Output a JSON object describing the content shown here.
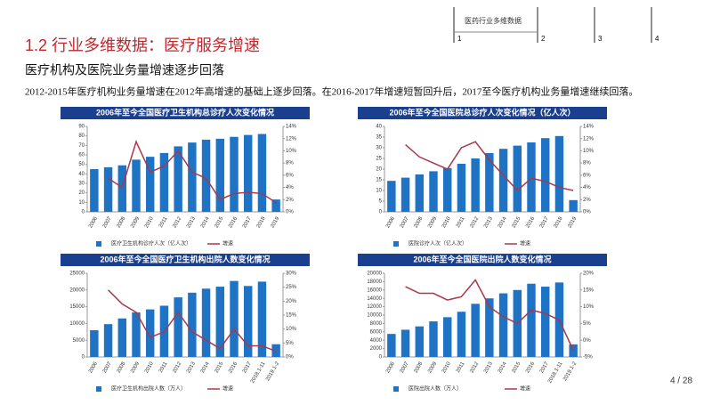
{
  "header": {
    "section": "医药行业多维数据",
    "tabs": [
      "1",
      "2",
      "3",
      "4"
    ]
  },
  "title": "1.2 行业多维数据：医疗服务增速",
  "subtitle": "医疗机构及医院业务量增速逐步回落",
  "paragraph": "2012-2015年医疗机构业务量增速在2012年高增速的基础上逐步回落。在2016-2017年增速短暂回升后，2017至今医疗机构业务量增速继续回落。",
  "page": "4 / 28",
  "chart_data": [
    {
      "type": "bar_line",
      "title": "2006年至今全国医疗卫生机构总诊疗人次变化情况",
      "categories": [
        "2006",
        "2007",
        "2008",
        "2009",
        "2010",
        "2011",
        "2012",
        "2013",
        "2014",
        "2015",
        "2016",
        "2017",
        "2018",
        "2019"
      ],
      "series": [
        {
          "name": "医疗卫生机构诊疗人次（亿人次）",
          "color": "#1f73c4",
          "values": [
            45,
            47,
            49,
            55,
            58,
            62,
            69,
            73,
            76,
            77,
            79,
            81,
            82,
            13
          ]
        },
        {
          "name": "增速",
          "color": "#a8384a",
          "axis": "y2",
          "values": [
            null,
            5.5,
            4,
            11.5,
            6.5,
            7.5,
            10,
            6.5,
            5.5,
            2,
            3,
            3.2,
            3,
            1.5
          ]
        }
      ],
      "ylim": [
        0,
        90
      ],
      "yticks": [
        0,
        10,
        20,
        30,
        40,
        50,
        60,
        70,
        80,
        90
      ],
      "y2lim": [
        0,
        14
      ],
      "y2ticks": [
        {
          "value": 0,
          "label": "0%"
        },
        {
          "value": 2,
          "label": "2%"
        },
        {
          "value": 4,
          "label": "4%"
        },
        {
          "value": 6,
          "label": "6%"
        },
        {
          "value": 8,
          "label": "8%"
        },
        {
          "value": 10,
          "label": "10%"
        },
        {
          "value": 12,
          "label": "12%"
        },
        {
          "value": 14,
          "label": "14%"
        }
      ]
    },
    {
      "type": "bar_line",
      "title": "2006年至今全国医院总诊疗人次变化情况（亿人次）",
      "categories": [
        "2006",
        "2007",
        "2008",
        "2009",
        "2010",
        "2011",
        "2012",
        "2013",
        "2014",
        "2015",
        "2016",
        "2017",
        "2018",
        "2019"
      ],
      "series": [
        {
          "name": "医院诊疗人次（亿人次）",
          "color": "#1f73c4",
          "values": [
            14.5,
            16,
            17.5,
            19,
            20.5,
            22.5,
            25,
            27.5,
            29.5,
            31,
            32.5,
            34.5,
            35.5,
            5.5
          ]
        },
        {
          "name": "增速",
          "color": "#a8384a",
          "axis": "y2",
          "values": [
            null,
            11,
            9,
            8,
            7,
            10.5,
            11.5,
            8.5,
            6,
            3.5,
            5.5,
            5,
            4,
            3.5
          ]
        }
      ],
      "ylim": [
        0,
        40
      ],
      "yticks": [
        0,
        5,
        10,
        15,
        20,
        25,
        30,
        35,
        40
      ],
      "y2lim": [
        0,
        14
      ],
      "y2ticks": [
        {
          "value": 0,
          "label": "0%"
        },
        {
          "value": 2,
          "label": "2%"
        },
        {
          "value": 4,
          "label": "4%"
        },
        {
          "value": 6,
          "label": "6%"
        },
        {
          "value": 8,
          "label": "8%"
        },
        {
          "value": 10,
          "label": "10%"
        },
        {
          "value": 12,
          "label": "12%"
        },
        {
          "value": 14,
          "label": "14%"
        }
      ]
    },
    {
      "type": "bar_line",
      "title": "2006年至今全国医疗卫生机构出院人数变化情况",
      "categories": [
        "2006",
        "2007",
        "2008",
        "2009",
        "2010",
        "2011",
        "2012",
        "2013",
        "2014",
        "2015",
        "2016",
        "2017",
        "2018.1-11",
        "2019.1-2"
      ],
      "series": [
        {
          "name": "医疗卫生机构出院人数（万人）",
          "color": "#1f73c4",
          "values": [
            8000,
            9800,
            11500,
            13300,
            14200,
            15300,
            17800,
            19200,
            20400,
            21000,
            22700,
            21200,
            22500,
            3800
          ]
        },
        {
          "name": "增速",
          "color": "#a8384a",
          "axis": "y2",
          "values": [
            null,
            24,
            19,
            16,
            7,
            9,
            16,
            9,
            6,
            3,
            10,
            4,
            4,
            2
          ]
        }
      ],
      "ylim": [
        0,
        25000
      ],
      "yticks": [
        0,
        5000,
        10000,
        15000,
        20000,
        25000
      ],
      "y2lim": [
        0,
        30
      ],
      "y2ticks": [
        {
          "value": 0,
          "label": "0%"
        },
        {
          "value": 5,
          "label": "5%"
        },
        {
          "value": 10,
          "label": "10%"
        },
        {
          "value": 15,
          "label": "15%"
        },
        {
          "value": 20,
          "label": "20%"
        },
        {
          "value": 25,
          "label": "25%"
        },
        {
          "value": 30,
          "label": "30%"
        }
      ]
    },
    {
      "type": "bar_line",
      "title": "2006年至今全国医院出院人数变化情况",
      "categories": [
        "2006",
        "2007",
        "2008",
        "2009",
        "2010",
        "2011",
        "2012",
        "2013",
        "2014",
        "2015",
        "2016",
        "2017",
        "2018.1-11",
        "2019.1-2"
      ],
      "series": [
        {
          "name": "医院出院人数（万人）",
          "color": "#1f73c4",
          "values": [
            5500,
            6500,
            7300,
            8500,
            9500,
            10800,
            12700,
            14000,
            15200,
            16000,
            17500,
            16800,
            17800,
            3000
          ]
        },
        {
          "name": "增速",
          "color": "#a8384a",
          "axis": "y2",
          "values": [
            null,
            16,
            14,
            14,
            12,
            13,
            18,
            10,
            7,
            5,
            9,
            8,
            6,
            -3
          ]
        }
      ],
      "ylim": [
        0,
        20000
      ],
      "yticks": [
        0,
        2000,
        4000,
        6000,
        8000,
        10000,
        12000,
        14000,
        16000,
        18000,
        20000
      ],
      "y2lim": [
        -5,
        20
      ],
      "y2ticks": [
        {
          "value": -5,
          "label": "-5%"
        },
        {
          "value": 0,
          "label": "0%"
        },
        {
          "value": 5,
          "label": "5%"
        },
        {
          "value": 10,
          "label": "10%"
        },
        {
          "value": 15,
          "label": "15%"
        },
        {
          "value": 20,
          "label": "20%"
        }
      ]
    }
  ]
}
